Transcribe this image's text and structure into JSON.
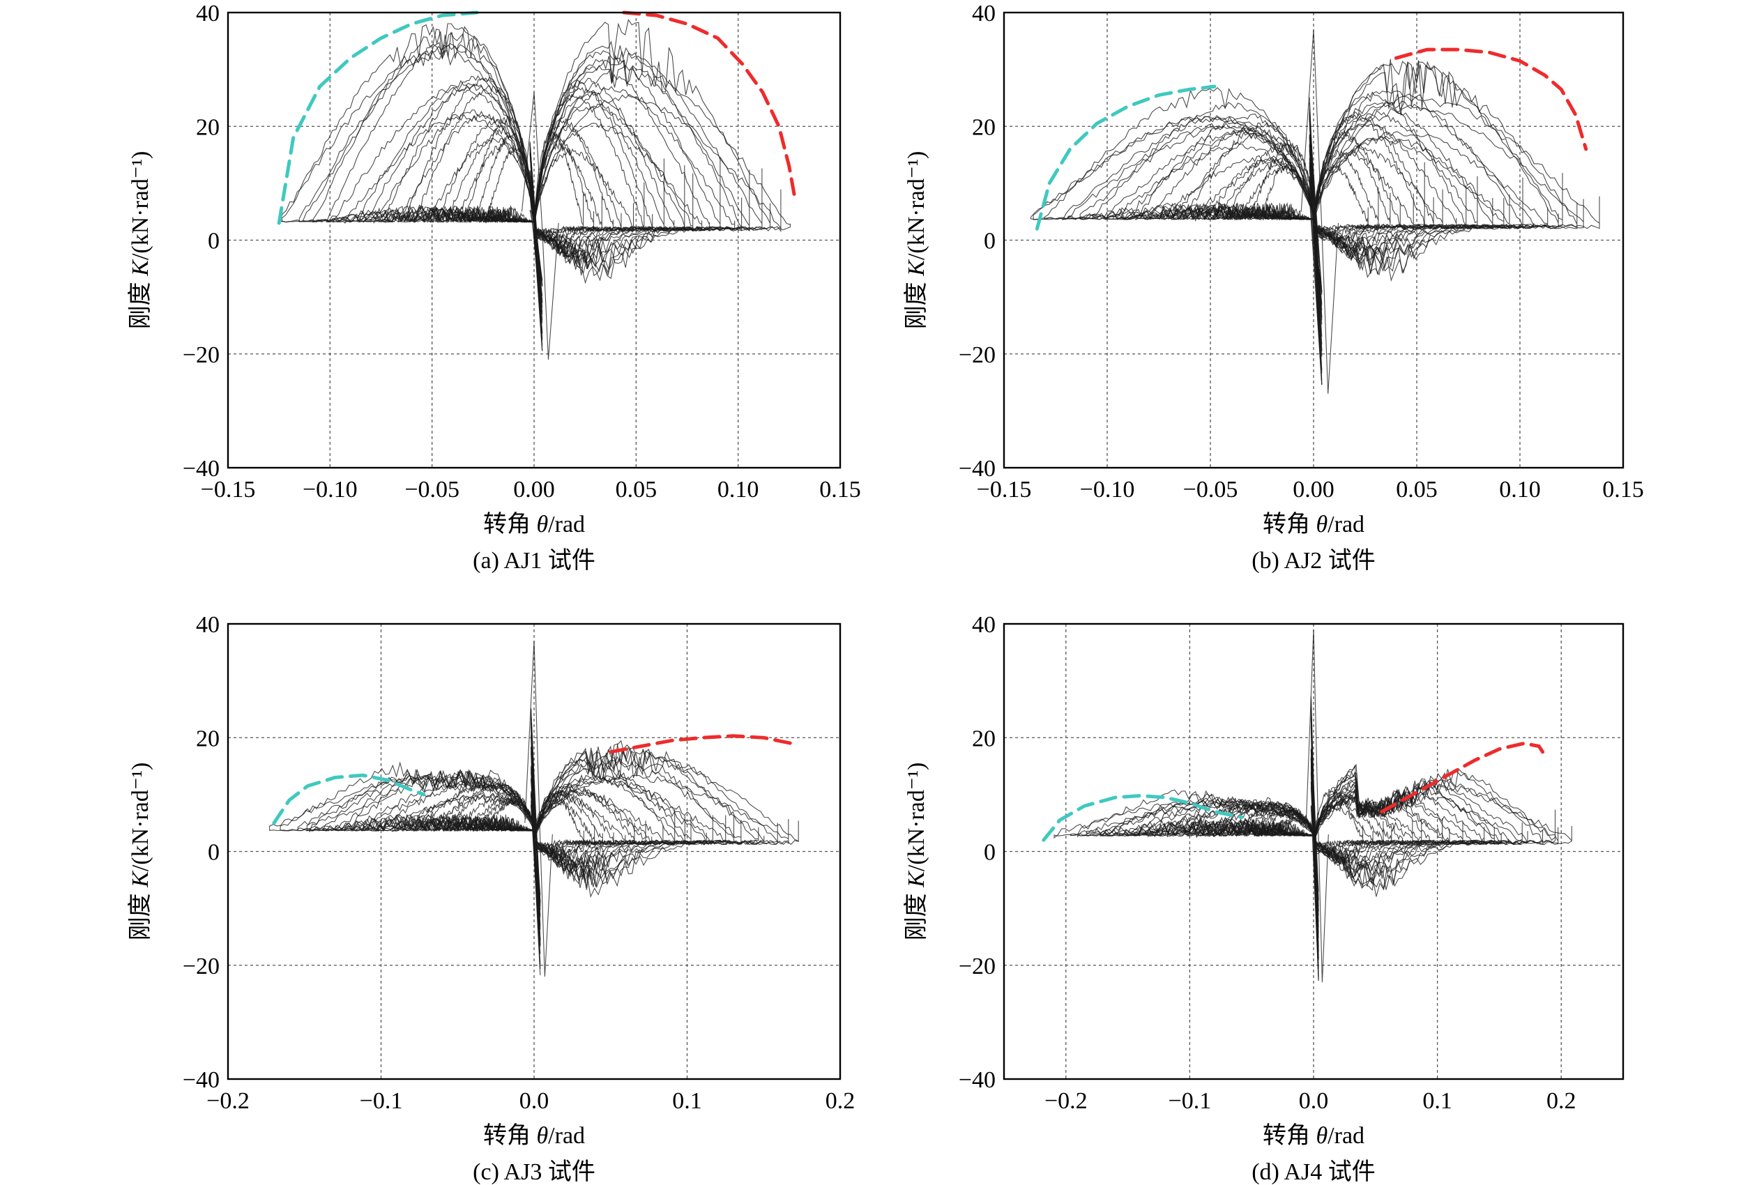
{
  "colors": {
    "negative_envelope": "#3fc9c0",
    "positive_envelope": "#ef2b2b",
    "curves": "#1a1a1a"
  },
  "panels": [
    {
      "id": "a",
      "caption": "(a) AJ1 试件",
      "xlabel_prefix": "转角 ",
      "xlabel_symbol": "θ",
      "xlabel_suffix": "/rad",
      "ylabel_prefix": "刚度 ",
      "ylabel_symbol": "K",
      "ylabel_suffix": "/(kN·rad⁻¹)",
      "xlim": [
        -0.15,
        0.15
      ],
      "ylim": [
        -40,
        40
      ],
      "xticks": [
        -0.15,
        -0.1,
        -0.05,
        0.0,
        0.05,
        0.1,
        0.15
      ],
      "xtick_labels": [
        "−0.15",
        "−0.10",
        "−0.05",
        "0.00",
        "0.05",
        "0.10",
        "0.15"
      ],
      "yticks": [
        -40,
        -20,
        0,
        20,
        40
      ],
      "ytick_labels": [
        "−40",
        "−20",
        "0",
        "20",
        "40"
      ],
      "x_amp": 0.128,
      "peak_neg": 38,
      "peak_pos": 39,
      "base_neg": 3.5,
      "base_pos": 2.5,
      "spike_min": -21,
      "spike_max": 26,
      "env_neg": [
        [
          -0.125,
          3
        ],
        [
          -0.118,
          18
        ],
        [
          -0.105,
          27
        ],
        [
          -0.09,
          32
        ],
        [
          -0.075,
          35.5
        ],
        [
          -0.06,
          38
        ],
        [
          -0.045,
          39.5
        ],
        [
          -0.028,
          40
        ]
      ],
      "env_pos": [
        [
          0.044,
          40
        ],
        [
          0.06,
          39.5
        ],
        [
          0.075,
          38
        ],
        [
          0.09,
          35.5
        ],
        [
          0.102,
          31
        ],
        [
          0.112,
          26
        ],
        [
          0.12,
          20
        ],
        [
          0.125,
          13
        ],
        [
          0.128,
          7
        ]
      ]
    },
    {
      "id": "b",
      "caption": "(b) AJ2 试件",
      "xlabel_prefix": "转角 ",
      "xlabel_symbol": "θ",
      "xlabel_suffix": "/rad",
      "ylabel_prefix": "刚度 ",
      "ylabel_symbol": "K",
      "ylabel_suffix": "/(kN·rad⁻¹)",
      "xlim": [
        -0.15,
        0.15
      ],
      "ylim": [
        -40,
        40
      ],
      "xticks": [
        -0.15,
        -0.1,
        -0.05,
        0.0,
        0.05,
        0.1,
        0.15
      ],
      "xtick_labels": [
        "−0.15",
        "−0.10",
        "−0.05",
        "0.00",
        "0.05",
        "0.10",
        "0.15"
      ],
      "yticks": [
        -40,
        -20,
        0,
        20,
        40
      ],
      "ytick_labels": [
        "−40",
        "−20",
        "0",
        "20",
        "40"
      ],
      "x_amp": 0.14,
      "peak_neg": 26,
      "peak_pos": 33,
      "base_neg": 4,
      "base_pos": 3,
      "spike_min": -27,
      "spike_max": 37,
      "env_neg": [
        [
          -0.134,
          2
        ],
        [
          -0.128,
          10
        ],
        [
          -0.118,
          16
        ],
        [
          -0.105,
          20.5
        ],
        [
          -0.09,
          23.5
        ],
        [
          -0.075,
          25.5
        ],
        [
          -0.06,
          26.5
        ],
        [
          -0.048,
          27
        ]
      ],
      "env_pos": [
        [
          0.04,
          32
        ],
        [
          0.055,
          33.5
        ],
        [
          0.07,
          33.5
        ],
        [
          0.085,
          33
        ],
        [
          0.1,
          31.5
        ],
        [
          0.112,
          29
        ],
        [
          0.12,
          26.5
        ],
        [
          0.127,
          22
        ],
        [
          0.132,
          16
        ]
      ]
    },
    {
      "id": "c",
      "caption": "(c) AJ3 试件",
      "xlabel_prefix": "转角 ",
      "xlabel_symbol": "θ",
      "xlabel_suffix": "/rad",
      "ylabel_prefix": "刚度 ",
      "ylabel_symbol": "K",
      "ylabel_suffix": "/(kN·rad⁻¹)",
      "xlim": [
        -0.2,
        0.2
      ],
      "ylim": [
        -40,
        40
      ],
      "xticks": [
        -0.2,
        -0.1,
        0.0,
        0.1,
        0.2
      ],
      "xtick_labels": [
        "−0.2",
        "−0.1",
        "0.0",
        "0.1",
        "0.2"
      ],
      "yticks": [
        -40,
        -20,
        0,
        20,
        40
      ],
      "ytick_labels": [
        "−40",
        "−20",
        "0",
        "20",
        "40"
      ],
      "x_amp": 0.172,
      "peak_neg": 13,
      "peak_pos": 20,
      "base_neg": 4,
      "base_pos": 2,
      "spike_min": -22,
      "spike_max": 37,
      "env_neg": [
        [
          -0.17,
          5
        ],
        [
          -0.16,
          9
        ],
        [
          -0.148,
          11.5
        ],
        [
          -0.13,
          13
        ],
        [
          -0.112,
          13.4
        ],
        [
          -0.095,
          12.5
        ],
        [
          -0.082,
          11
        ],
        [
          -0.072,
          10
        ]
      ],
      "env_pos": [
        [
          0.05,
          17.5
        ],
        [
          0.07,
          18.5
        ],
        [
          0.09,
          19.5
        ],
        [
          0.11,
          20
        ],
        [
          0.13,
          20.3
        ],
        [
          0.15,
          20
        ],
        [
          0.168,
          19
        ]
      ]
    },
    {
      "id": "d",
      "caption": "(d) AJ4 试件",
      "xlabel_prefix": "转角 ",
      "xlabel_symbol": "θ",
      "xlabel_suffix": "/rad",
      "ylabel_prefix": "刚度 ",
      "ylabel_symbol": "K",
      "ylabel_suffix": "/(kN·rad⁻¹)",
      "xlim": [
        -0.25,
        0.25
      ],
      "ylim": [
        -40,
        40
      ],
      "xticks": [
        -0.2,
        -0.1,
        0.0,
        0.1,
        0.2
      ],
      "xtick_labels": [
        "−0.2",
        "−0.1",
        "0.0",
        "0.1",
        "0.2"
      ],
      "yticks": [
        -40,
        -20,
        0,
        20,
        40
      ],
      "ytick_labels": [
        "−40",
        "−20",
        "0",
        "20",
        "40"
      ],
      "x_amp": 0.21,
      "peak_neg": 9,
      "peak_pos": 18,
      "base_neg": 3,
      "base_pos": 2,
      "spike_min": -23,
      "spike_max": 39,
      "env_neg": [
        [
          -0.218,
          2
        ],
        [
          -0.205,
          5.5
        ],
        [
          -0.185,
          8
        ],
        [
          -0.16,
          9.5
        ],
        [
          -0.14,
          9.8
        ],
        [
          -0.12,
          9.5
        ],
        [
          -0.1,
          8.5
        ],
        [
          -0.08,
          7
        ],
        [
          -0.058,
          6
        ]
      ],
      "env_pos": [
        [
          0.055,
          7
        ],
        [
          0.08,
          10
        ],
        [
          0.105,
          13
        ],
        [
          0.13,
          16
        ],
        [
          0.15,
          18
        ],
        [
          0.17,
          19
        ],
        [
          0.182,
          18.5
        ],
        [
          0.185,
          17.5
        ]
      ]
    }
  ]
}
